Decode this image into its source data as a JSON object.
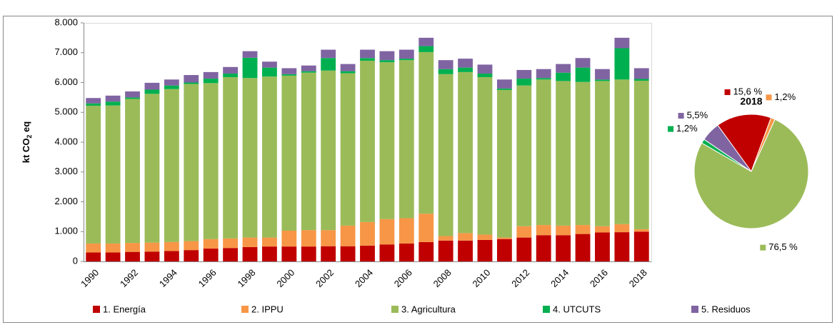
{
  "chart_data": [
    {
      "type": "stacked_bar",
      "y_label": [
        "kt CO",
        "2",
        " eq"
      ],
      "categories": [
        "1990",
        null,
        "1992",
        null,
        "1994",
        null,
        "1996",
        null,
        "1998",
        null,
        "2000",
        null,
        "2002",
        null,
        "2004",
        null,
        "2006",
        null,
        "2008",
        null,
        "2010",
        null,
        "2012",
        null,
        "2014",
        null,
        "2016",
        null,
        "2018"
      ],
      "ylim": [
        0,
        8000
      ],
      "yticks": [
        0,
        {
          "value": 1000,
          "label": "1.000"
        },
        {
          "value": 2000,
          "label": "2.000"
        },
        {
          "value": 3000,
          "label": "3.000"
        },
        {
          "value": 4000,
          "label": "4.000"
        },
        {
          "value": 5000,
          "label": "5.000"
        },
        {
          "value": 6000,
          "label": "6.000"
        },
        {
          "value": 7000,
          "label": "7.000"
        },
        {
          "value": 8000,
          "label": "8.000"
        }
      ],
      "grid": false,
      "legend": "bottom",
      "series": [
        {
          "name": "1. Energía",
          "color": "#c00000",
          "values": [
            300,
            300,
            320,
            330,
            350,
            380,
            430,
            450,
            480,
            500,
            500,
            500,
            510,
            510,
            530,
            570,
            600,
            650,
            700,
            700,
            720,
            750,
            800,
            880,
            880,
            920,
            970,
            980,
            1000
          ]
        },
        {
          "name": "2. IPPU",
          "color": "#f79646",
          "values": [
            300,
            300,
            300,
            300,
            300,
            300,
            320,
            320,
            320,
            300,
            530,
            550,
            540,
            690,
            790,
            850,
            850,
            950,
            150,
            250,
            180,
            50,
            380,
            340,
            320,
            300,
            210,
            270,
            80
          ]
        },
        {
          "name": "3. Agricultura",
          "color": "#9bbb59",
          "values": [
            4620,
            4630,
            4830,
            4990,
            5130,
            5270,
            5230,
            5410,
            5350,
            5400,
            5200,
            5280,
            5350,
            5110,
            5410,
            5260,
            5300,
            5420,
            5430,
            5400,
            5280,
            4950,
            4720,
            4880,
            4850,
            4800,
            4870,
            4850,
            4980
          ]
        },
        {
          "name": "4. UTCUTS",
          "color": "#00b050",
          "values": [
            80,
            130,
            50,
            140,
            120,
            50,
            150,
            120,
            680,
            300,
            50,
            50,
            420,
            70,
            90,
            70,
            50,
            200,
            170,
            150,
            120,
            50,
            230,
            50,
            280,
            480,
            50,
            1050,
            60
          ]
        },
        {
          "name": "5. Residuos",
          "color": "#8064a2",
          "values": [
            180,
            200,
            200,
            230,
            200,
            250,
            220,
            220,
            220,
            200,
            200,
            190,
            280,
            240,
            280,
            300,
            300,
            280,
            300,
            300,
            300,
            300,
            290,
            300,
            290,
            320,
            350,
            350,
            360
          ]
        }
      ]
    },
    {
      "type": "pie",
      "title": "2018",
      "values": [
        15.6,
        1.2,
        76.5,
        1.2,
        5.5
      ],
      "value_labels": [
        "15,6 %",
        "1,2%",
        "76,5 %",
        "1,2%",
        "5,5%"
      ],
      "colors": [
        "#c00000",
        "#f79646",
        "#9bbb59",
        "#00b050",
        "#8064a2"
      ]
    }
  ]
}
